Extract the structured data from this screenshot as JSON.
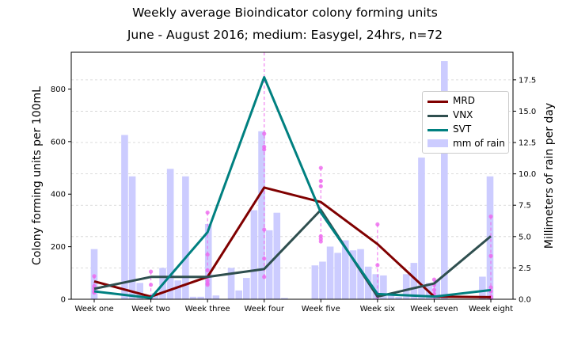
{
  "chart_data": {
    "type": "bar+line",
    "title": "Weekly average Bioindicator colony forming units",
    "subtitle": "June - August 2016; medium: Easygel, 24hrs, n=72",
    "ylabel": "Colony forming units per 100mL",
    "y2label": "Millimeters of rain per day",
    "categories": [
      "Week one",
      "Week two",
      "Week three",
      "Week four",
      "Week five",
      "Week six",
      "Week seven",
      "Week eight"
    ],
    "ylim": [
      0,
      940
    ],
    "y2lim": [
      0,
      19.7
    ],
    "yticks": [
      0,
      200,
      400,
      600,
      800
    ],
    "y2ticks": [
      0.0,
      2.5,
      5.0,
      7.5,
      10.0,
      12.5,
      15.0,
      17.5
    ],
    "legend_position": "upper right",
    "grid": true,
    "series": [
      {
        "name": "MRD",
        "color": "#800000",
        "values": [
          68,
          10,
          85,
          425,
          370,
          210,
          10,
          8
        ]
      },
      {
        "name": "VNX",
        "color": "#2f4f4f",
        "values": [
          40,
          85,
          85,
          115,
          340,
          10,
          60,
          240
        ]
      },
      {
        "name": "SVT",
        "color": "#008080",
        "values": [
          30,
          5,
          255,
          845,
          330,
          20,
          10,
          35
        ]
      }
    ],
    "rain": {
      "name": "mm of rain",
      "color": "#ccccff",
      "values": [
        4.0,
        0,
        0,
        0,
        13.1,
        9.8,
        1.3,
        0,
        0.5,
        2.5,
        10.4,
        1.5,
        9.8,
        0.2,
        0.2,
        6.0,
        0.3,
        0,
        2.5,
        0.7,
        1.7,
        7.1,
        13.4,
        5.5,
        6.9,
        0.1,
        0,
        0,
        0,
        2.7,
        3.0,
        4.2,
        3.7,
        4.7,
        3.9,
        4.0,
        2.6,
        2.0,
        1.9,
        0.5,
        0.2,
        2.0,
        2.9,
        11.3,
        1.3,
        1.5,
        19.0,
        0,
        0,
        0,
        0,
        1.8,
        9.8
      ]
    },
    "samples": {
      "color": "#ee66ee",
      "points": [
        {
          "week": 1,
          "values": [
            88,
            50,
            40,
            30,
            25
          ]
        },
        {
          "week": 2,
          "values": [
            105,
            55,
            10,
            5
          ]
        },
        {
          "week": 3,
          "values": [
            330,
            170,
            110,
            85,
            70,
            60,
            55
          ]
        },
        {
          "week": 4,
          "values": [
            630,
            580,
            570,
            265,
            155,
            85
          ]
        },
        {
          "week": 5,
          "values": [
            500,
            450,
            430,
            240,
            230,
            220
          ]
        },
        {
          "week": 6,
          "values": [
            285,
            130,
            20,
            10
          ]
        },
        {
          "week": 7,
          "values": [
            75,
            55,
            35,
            20,
            10
          ]
        },
        {
          "week": 8,
          "values": [
            315,
            165,
            45,
            30,
            10,
            5
          ]
        }
      ]
    }
  }
}
